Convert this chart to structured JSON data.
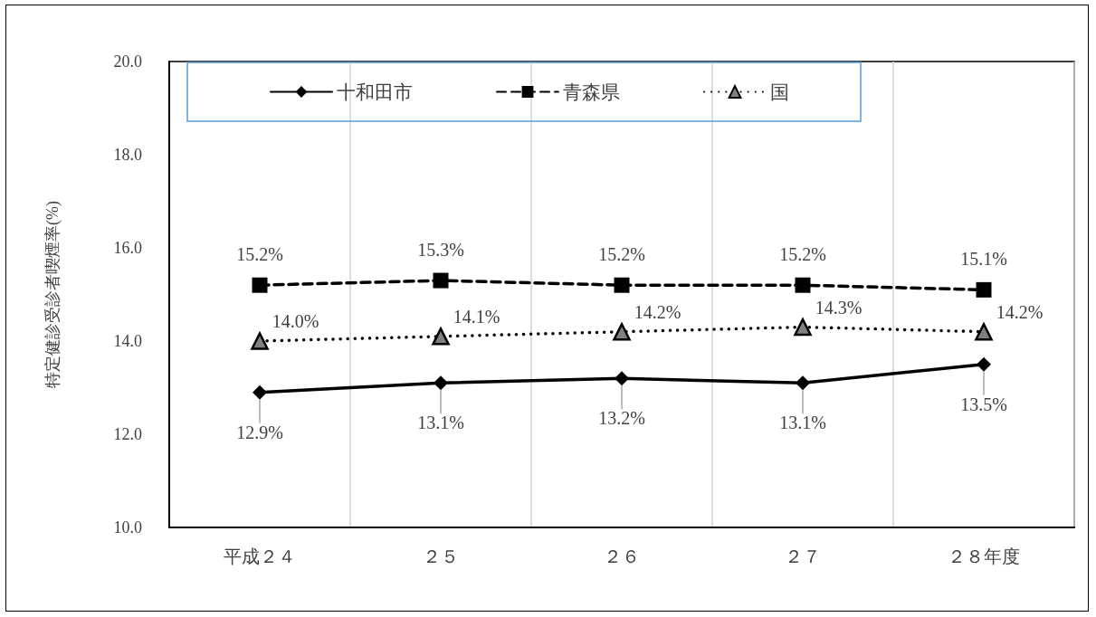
{
  "chart_data": {
    "type": "line",
    "categories": [
      "平成２４",
      "２５",
      "２６",
      "２７",
      "２８年度"
    ],
    "ylabel": "特定健診受診者喫煙率(%)",
    "ylim": [
      10,
      20
    ],
    "yticks": [
      {
        "value": 10,
        "label": "10.0"
      },
      {
        "value": 12,
        "label": "12.0"
      },
      {
        "value": 14,
        "label": "14.0"
      },
      {
        "value": 16,
        "label": "16.0"
      },
      {
        "value": 18,
        "label": "18.0"
      },
      {
        "value": 20,
        "label": "20.0"
      }
    ],
    "grid": "x",
    "legend": "top",
    "series": [
      {
        "name": "十和田市",
        "color": "#000000",
        "marker": "diamond",
        "line_style": "solid",
        "values": [
          12.9,
          13.1,
          13.2,
          13.1,
          13.5
        ],
        "value_labels": [
          "12.9%",
          "13.1%",
          "13.2%",
          "13.1%",
          "13.5%"
        ]
      },
      {
        "name": "青森県",
        "color": "#000000",
        "marker": "square",
        "line_style": "dashed",
        "values": [
          15.2,
          15.3,
          15.2,
          15.2,
          15.1
        ],
        "value_labels": [
          "15.2%",
          "15.3%",
          "15.2%",
          "15.2%",
          "15.1%"
        ]
      },
      {
        "name": "国",
        "color": "#808080",
        "marker": "triangle",
        "line_style": "dotted",
        "values": [
          14.0,
          14.1,
          14.2,
          14.3,
          14.2
        ],
        "value_labels": [
          "14.0%",
          "14.1%",
          "14.2%",
          "14.3%",
          "14.2%"
        ]
      }
    ]
  }
}
